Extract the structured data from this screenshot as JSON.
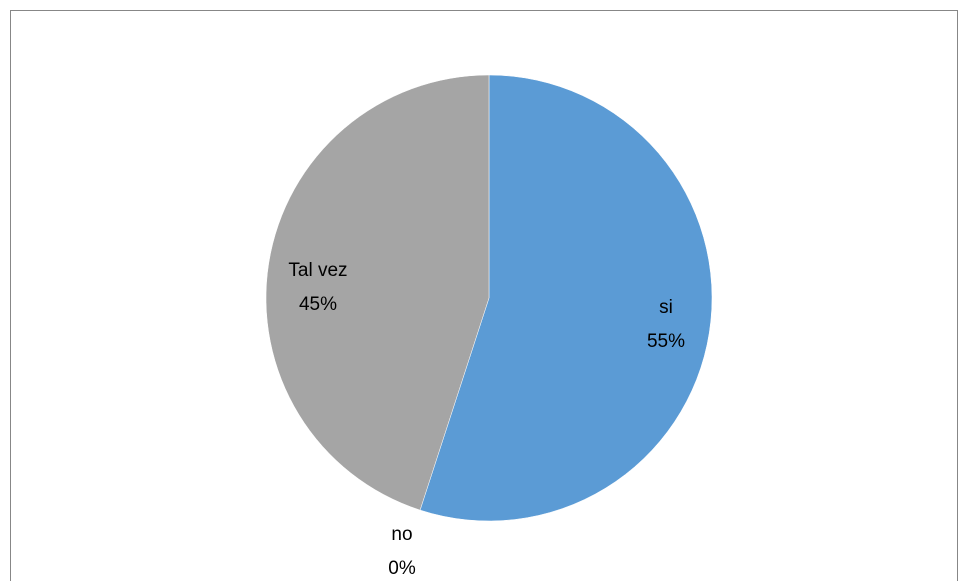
{
  "chart_data": {
    "type": "pie",
    "title": "",
    "categories": [
      "si",
      "no",
      "Tal vez"
    ],
    "values": [
      55,
      0,
      45
    ],
    "data_labels": [
      {
        "category": "si",
        "percent": "55%"
      },
      {
        "category": "no",
        "percent": "0%"
      },
      {
        "category": "Tal vez",
        "percent": "45%"
      }
    ],
    "colors": [
      "#5B9BD5",
      "#ED7D31",
      "#A5A5A5"
    ],
    "legend": "none",
    "start_angle_deg": 0,
    "direction": "clockwise"
  }
}
